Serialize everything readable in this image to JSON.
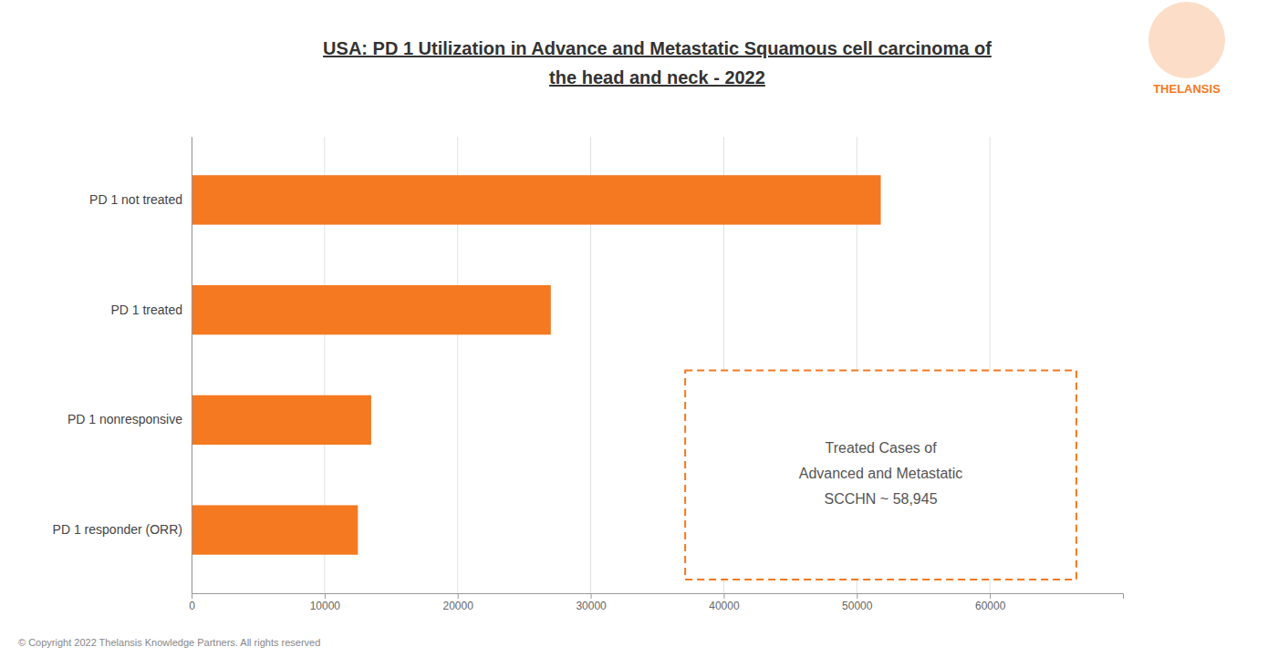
{
  "chart_data": {
    "type": "bar",
    "orientation": "horizontal",
    "title": "USA: PD 1 Utilization in Advance and Metastatic Squamous cell carcinoma of\nthe head and neck - 2022",
    "categories": [
      "PD 1 not treated",
      "PD 1 treated",
      "PD 1 nonresponsive",
      "PD 1 responder (ORR)"
    ],
    "values": [
      51800,
      27000,
      13500,
      12500
    ],
    "color": "#F47920",
    "xlim": [
      0,
      70000
    ],
    "xticks": [
      0,
      10000,
      20000,
      30000,
      40000,
      50000,
      60000
    ],
    "grid": true,
    "annotations": [
      "Treated Cases of\nAdvanced and Metastatic\nSCCHN ~ 58,945",
      "© Copyright 2022  Thelansis Knowledge Partners. All rights reserved",
      "THELANSIS"
    ]
  }
}
